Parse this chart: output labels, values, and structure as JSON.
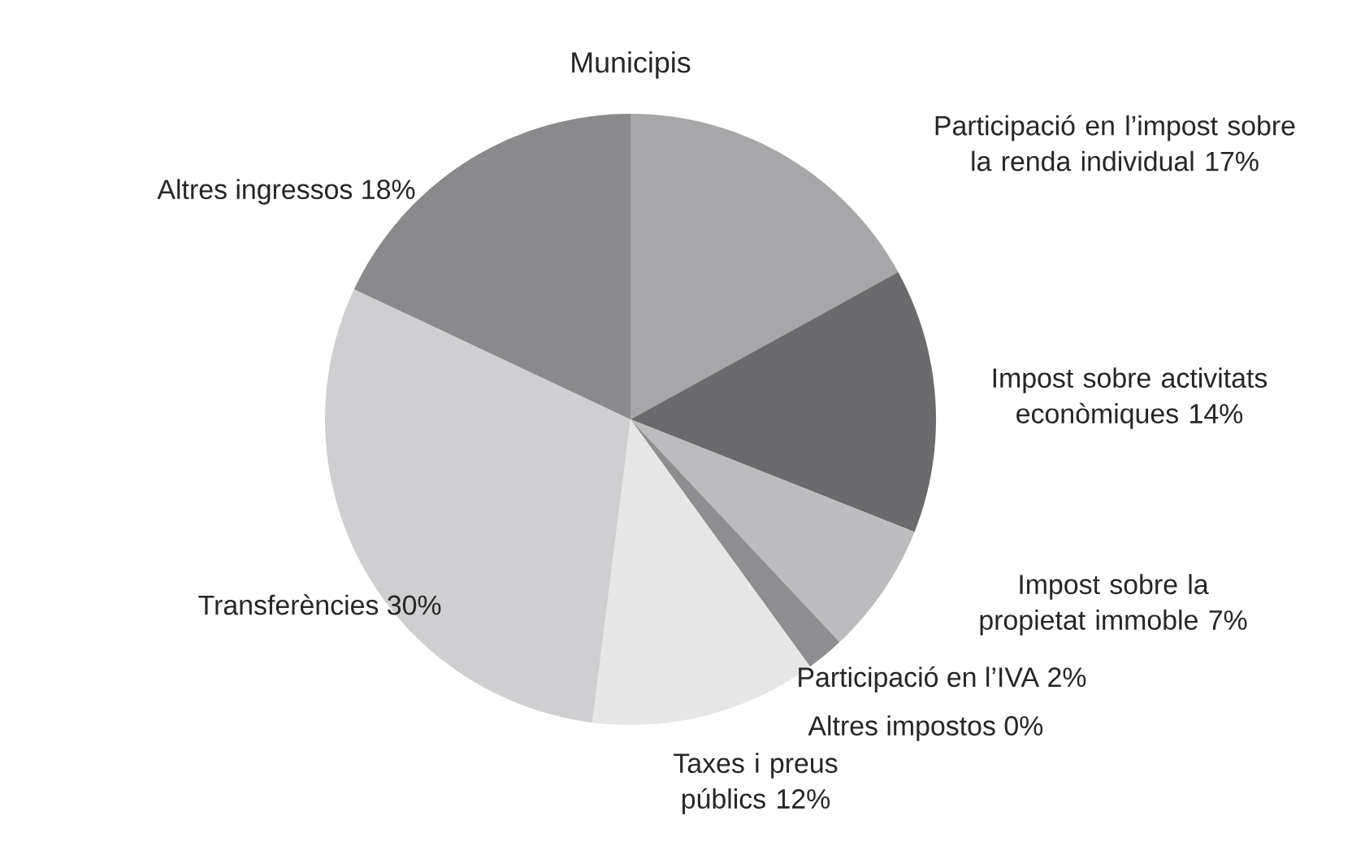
{
  "chart_data": {
    "type": "pie",
    "title": "Municipis",
    "categories": [
      "Participació en l’impost sobre la renda individual",
      "Impost sobre activitats econòmiques",
      "Impost sobre la propietat immoble",
      "Participació en l’IVA",
      "Altres impostos",
      "Taxes i preus públics",
      "Transferències",
      "Altres ingressos"
    ],
    "values": [
      17,
      14,
      7,
      2,
      0,
      12,
      30,
      18
    ],
    "value_labels": [
      "17%",
      "14%",
      "7%",
      "2%",
      "0%",
      "12%",
      "30%",
      "18%"
    ],
    "colors": [
      "#a7a7a9",
      "#6b6b6d",
      "#bcbcbe",
      "#8e8e90",
      "#1a1a1a",
      "#e6e6e7",
      "#cfcfd1",
      "#8a8a8c"
    ]
  }
}
